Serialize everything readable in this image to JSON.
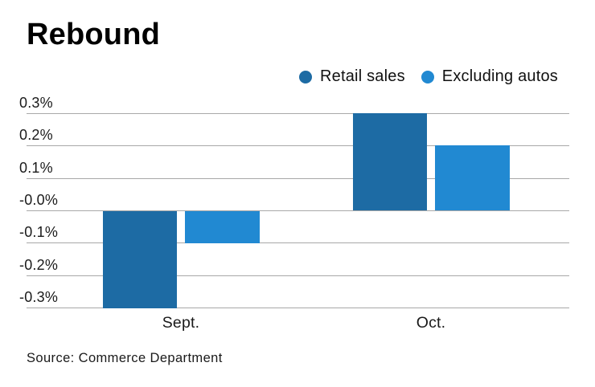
{
  "title": "Rebound",
  "source": "Source: Commerce Department",
  "colors": {
    "retail_sales": "#1d6ba4",
    "excluding_autos": "#2189d2",
    "gridline": "#a8a8a8",
    "text": "#1a1a1a"
  },
  "chart_data": {
    "type": "bar",
    "title": "Rebound",
    "categories": [
      "Sept.",
      "Oct."
    ],
    "series": [
      {
        "name": "Retail sales",
        "color": "#1d6ba4",
        "values": [
          -0.3,
          0.3
        ]
      },
      {
        "name": "Excluding autos",
        "color": "#2189d2",
        "values": [
          -0.1,
          0.2
        ]
      }
    ],
    "unit": "%",
    "y_ticks": [
      {
        "value": 0.3,
        "label": "0.3%"
      },
      {
        "value": 0.2,
        "label": "0.2%"
      },
      {
        "value": 0.1,
        "label": "0.1%"
      },
      {
        "value": 0.0,
        "label": "-0.0%"
      },
      {
        "value": -0.1,
        "label": "-0.1%"
      },
      {
        "value": -0.2,
        "label": "-0.2%"
      },
      {
        "value": -0.3,
        "label": "-0.3%"
      }
    ],
    "ylim": [
      -0.3,
      0.3
    ],
    "grid": true,
    "legend_position": "top-right",
    "source": "Source: Commerce Department"
  }
}
